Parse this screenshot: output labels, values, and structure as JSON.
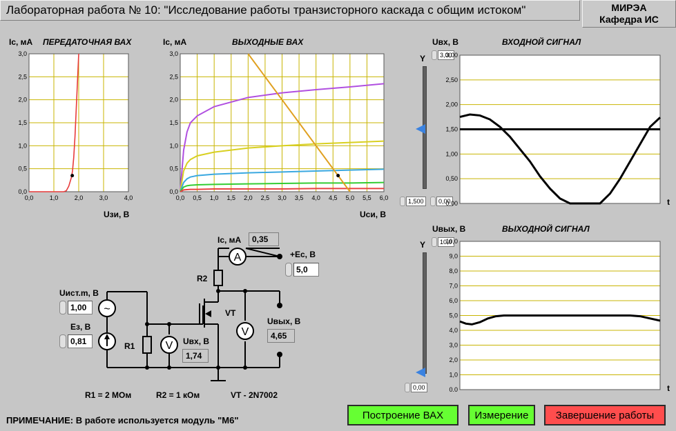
{
  "header": {
    "title": "Лабораторная работа № 10: \"Исследование работы транзисторного каскада с общим истоком\"",
    "org_line1": "МИРЭА",
    "org_line2": "Кафедра ИС"
  },
  "transfer_chart": {
    "ylabel": "Ic, мA",
    "title": "ПЕРЕДАТОЧНАЯ ВАХ",
    "xlabel": "Uзи, В",
    "yticks": [
      "3,0",
      "2,5",
      "2,0",
      "1,5",
      "1,0",
      "0,5",
      "0,0"
    ],
    "xticks": [
      "0,0",
      "1,0",
      "2,0",
      "3,0",
      "4,0"
    ]
  },
  "output_chart": {
    "ylabel": "Ic, мA",
    "title": "ВЫХОДНЫЕ ВАХ",
    "xlabel": "Uси, В",
    "yticks": [
      "3,0",
      "2,5",
      "2,0",
      "1,5",
      "1,0",
      "0,5",
      "0,0"
    ],
    "xticks": [
      "0,0",
      "0,5",
      "1,0",
      "1,5",
      "2,0",
      "2,5",
      "3,0",
      "3,5",
      "4,0",
      "4,5",
      "5,0",
      "5,5",
      "6,0"
    ]
  },
  "input_chart": {
    "ylabel": "Uвх, В",
    "title": "ВХОДНОЙ СИГНАЛ",
    "axis_letter": "Y",
    "t_label": "t",
    "yticks": [
      "3,00",
      "2,50",
      "2,00",
      "1,50",
      "1,00",
      "0,50",
      "0,00"
    ],
    "scale_max": "3,00",
    "scale_min": "0,00",
    "slider_value": "1,500"
  },
  "output_signal_chart": {
    "ylabel": "Uвых, В",
    "title": "ВЫХОДНОЙ СИГНАЛ",
    "axis_letter": "Y",
    "t_label": "t",
    "yticks": [
      "10,0",
      "9,0",
      "8,0",
      "7,0",
      "6,0",
      "5,0",
      "4,0",
      "3,0",
      "2,0",
      "1,0",
      "0,0"
    ],
    "scale_max": "10,0",
    "scale_min": "0,00"
  },
  "circuit": {
    "ic_label": "Ic, мA",
    "ic_value": "0,35",
    "ec_label": "+Ec, В",
    "ec_value": "5,0",
    "uist_label": "Uист.m, В",
    "uist_value": "1,00",
    "ez_label": "Eз, В",
    "ez_value": "0,81",
    "uvx_label": "Uвх, В",
    "uvx_value": "1,74",
    "uvyh_label": "Uвых, В",
    "uvyh_value": "4,65",
    "r1": "R1",
    "r2": "R2",
    "vt": "VT",
    "ammeter": "A",
    "voltmeter": "V",
    "source_ac": "~",
    "r1_spec": "R1 = 2 МОм",
    "r2_spec": "R2 = 1 кОм",
    "vt_spec": "VT - 2N7002"
  },
  "note": "ПРИМЕЧАНИЕ: В работе используется модуль \"М6\"",
  "buttons": {
    "build": "Построение ВАХ",
    "measure": "Измерение",
    "finish": "Завершение работы"
  },
  "chart_data": [
    {
      "type": "line",
      "xlabel": "Uзи, В",
      "ylabel": "Ic, мA",
      "title": "ПЕРЕДАТОЧНАЯ ВАХ",
      "xlim": [
        0,
        4
      ],
      "ylim": [
        0,
        3
      ],
      "series": [
        {
          "x": [
            0,
            1.4,
            1.5,
            1.6,
            1.7,
            1.75,
            1.8,
            1.85,
            1.9,
            1.95,
            2.0
          ],
          "y": [
            0,
            0,
            0.02,
            0.12,
            0.3,
            0.45,
            0.75,
            1.2,
            1.8,
            2.4,
            3.0
          ],
          "color": "#e83a3a"
        }
      ],
      "marker": {
        "x": 1.74,
        "y": 0.35
      }
    },
    {
      "type": "line",
      "xlabel": "Uси, В",
      "ylabel": "Ic, мA",
      "title": "ВЫХОДНЫЕ ВАХ",
      "xlim": [
        0,
        6
      ],
      "ylim": [
        0,
        3
      ],
      "series": [
        {
          "x": [
            0,
            0.1,
            0.2,
            0.3,
            0.5,
            1.0,
            2.0,
            3.0,
            4.0,
            5.0,
            6.0
          ],
          "y": [
            0,
            0.9,
            1.3,
            1.5,
            1.65,
            1.85,
            2.05,
            2.15,
            2.22,
            2.28,
            2.35
          ],
          "color": "#b04fe0"
        },
        {
          "x": [
            0,
            0.1,
            0.2,
            0.3,
            0.5,
            1.0,
            2.0,
            3.0,
            4.0,
            5.0,
            6.0
          ],
          "y": [
            0,
            0.45,
            0.62,
            0.7,
            0.78,
            0.86,
            0.95,
            1.0,
            1.04,
            1.07,
            1.1
          ],
          "color": "#d8d020"
        },
        {
          "x": [
            0,
            0.1,
            0.2,
            0.3,
            0.5,
            1.0,
            2.0,
            3.0,
            4.0,
            5.0,
            6.0
          ],
          "y": [
            0,
            0.2,
            0.28,
            0.32,
            0.35,
            0.38,
            0.41,
            0.43,
            0.45,
            0.47,
            0.49
          ],
          "color": "#3aa8e0"
        },
        {
          "x": [
            0,
            0.1,
            0.2,
            0.3,
            0.5,
            1.0,
            2.0,
            3.0,
            4.0,
            5.0,
            6.0
          ],
          "y": [
            0,
            0.1,
            0.13,
            0.14,
            0.15,
            0.16,
            0.17,
            0.18,
            0.19,
            0.19,
            0.2
          ],
          "color": "#33cc33"
        },
        {
          "x": [
            0,
            0.1,
            0.3,
            0.5,
            1.0,
            2.0,
            3.0,
            4.0,
            5.0,
            6.0
          ],
          "y": [
            0,
            0.04,
            0.05,
            0.05,
            0.06,
            0.06,
            0.06,
            0.07,
            0.07,
            0.07
          ],
          "color": "#e84040"
        },
        {
          "x": [
            2.0,
            5.0
          ],
          "y": [
            3.0,
            0.0
          ],
          "color": "#e0a020"
        }
      ],
      "marker": {
        "x": 4.65,
        "y": 0.35
      }
    },
    {
      "type": "line",
      "ylabel": "Uвх, В",
      "title": "ВХОДНОЙ СИГНАЛ",
      "ylim": [
        0,
        3
      ],
      "series": [
        {
          "x": [
            0,
            0.05,
            0.1,
            0.15,
            0.2,
            0.25,
            0.3,
            0.35,
            0.4,
            0.45,
            0.5,
            0.55,
            0.6,
            0.65,
            0.7,
            0.75,
            0.8,
            0.85,
            0.9,
            0.95,
            1.0
          ],
          "y": [
            1.75,
            1.8,
            1.78,
            1.7,
            1.55,
            1.35,
            1.1,
            0.85,
            0.55,
            0.3,
            0.1,
            0,
            0,
            0,
            0,
            0.2,
            0.5,
            0.85,
            1.2,
            1.55,
            1.74
          ],
          "color": "#000000"
        },
        {
          "x": [
            0,
            1.0
          ],
          "y": [
            1.5,
            1.5
          ],
          "color": "#000000"
        }
      ]
    },
    {
      "type": "line",
      "ylabel": "Uвых, В",
      "title": "ВЫХОДНОЙ СИГНАЛ",
      "ylim": [
        0,
        10
      ],
      "series": [
        {
          "x": [
            0,
            0.03,
            0.06,
            0.1,
            0.14,
            0.18,
            0.22,
            0.3,
            0.5,
            0.7,
            0.85,
            0.9,
            0.95,
            1.0
          ],
          "y": [
            4.6,
            4.45,
            4.4,
            4.55,
            4.8,
            4.95,
            5.0,
            5.0,
            5.0,
            5.0,
            5.0,
            4.95,
            4.8,
            4.65
          ],
          "color": "#000000"
        }
      ]
    }
  ]
}
